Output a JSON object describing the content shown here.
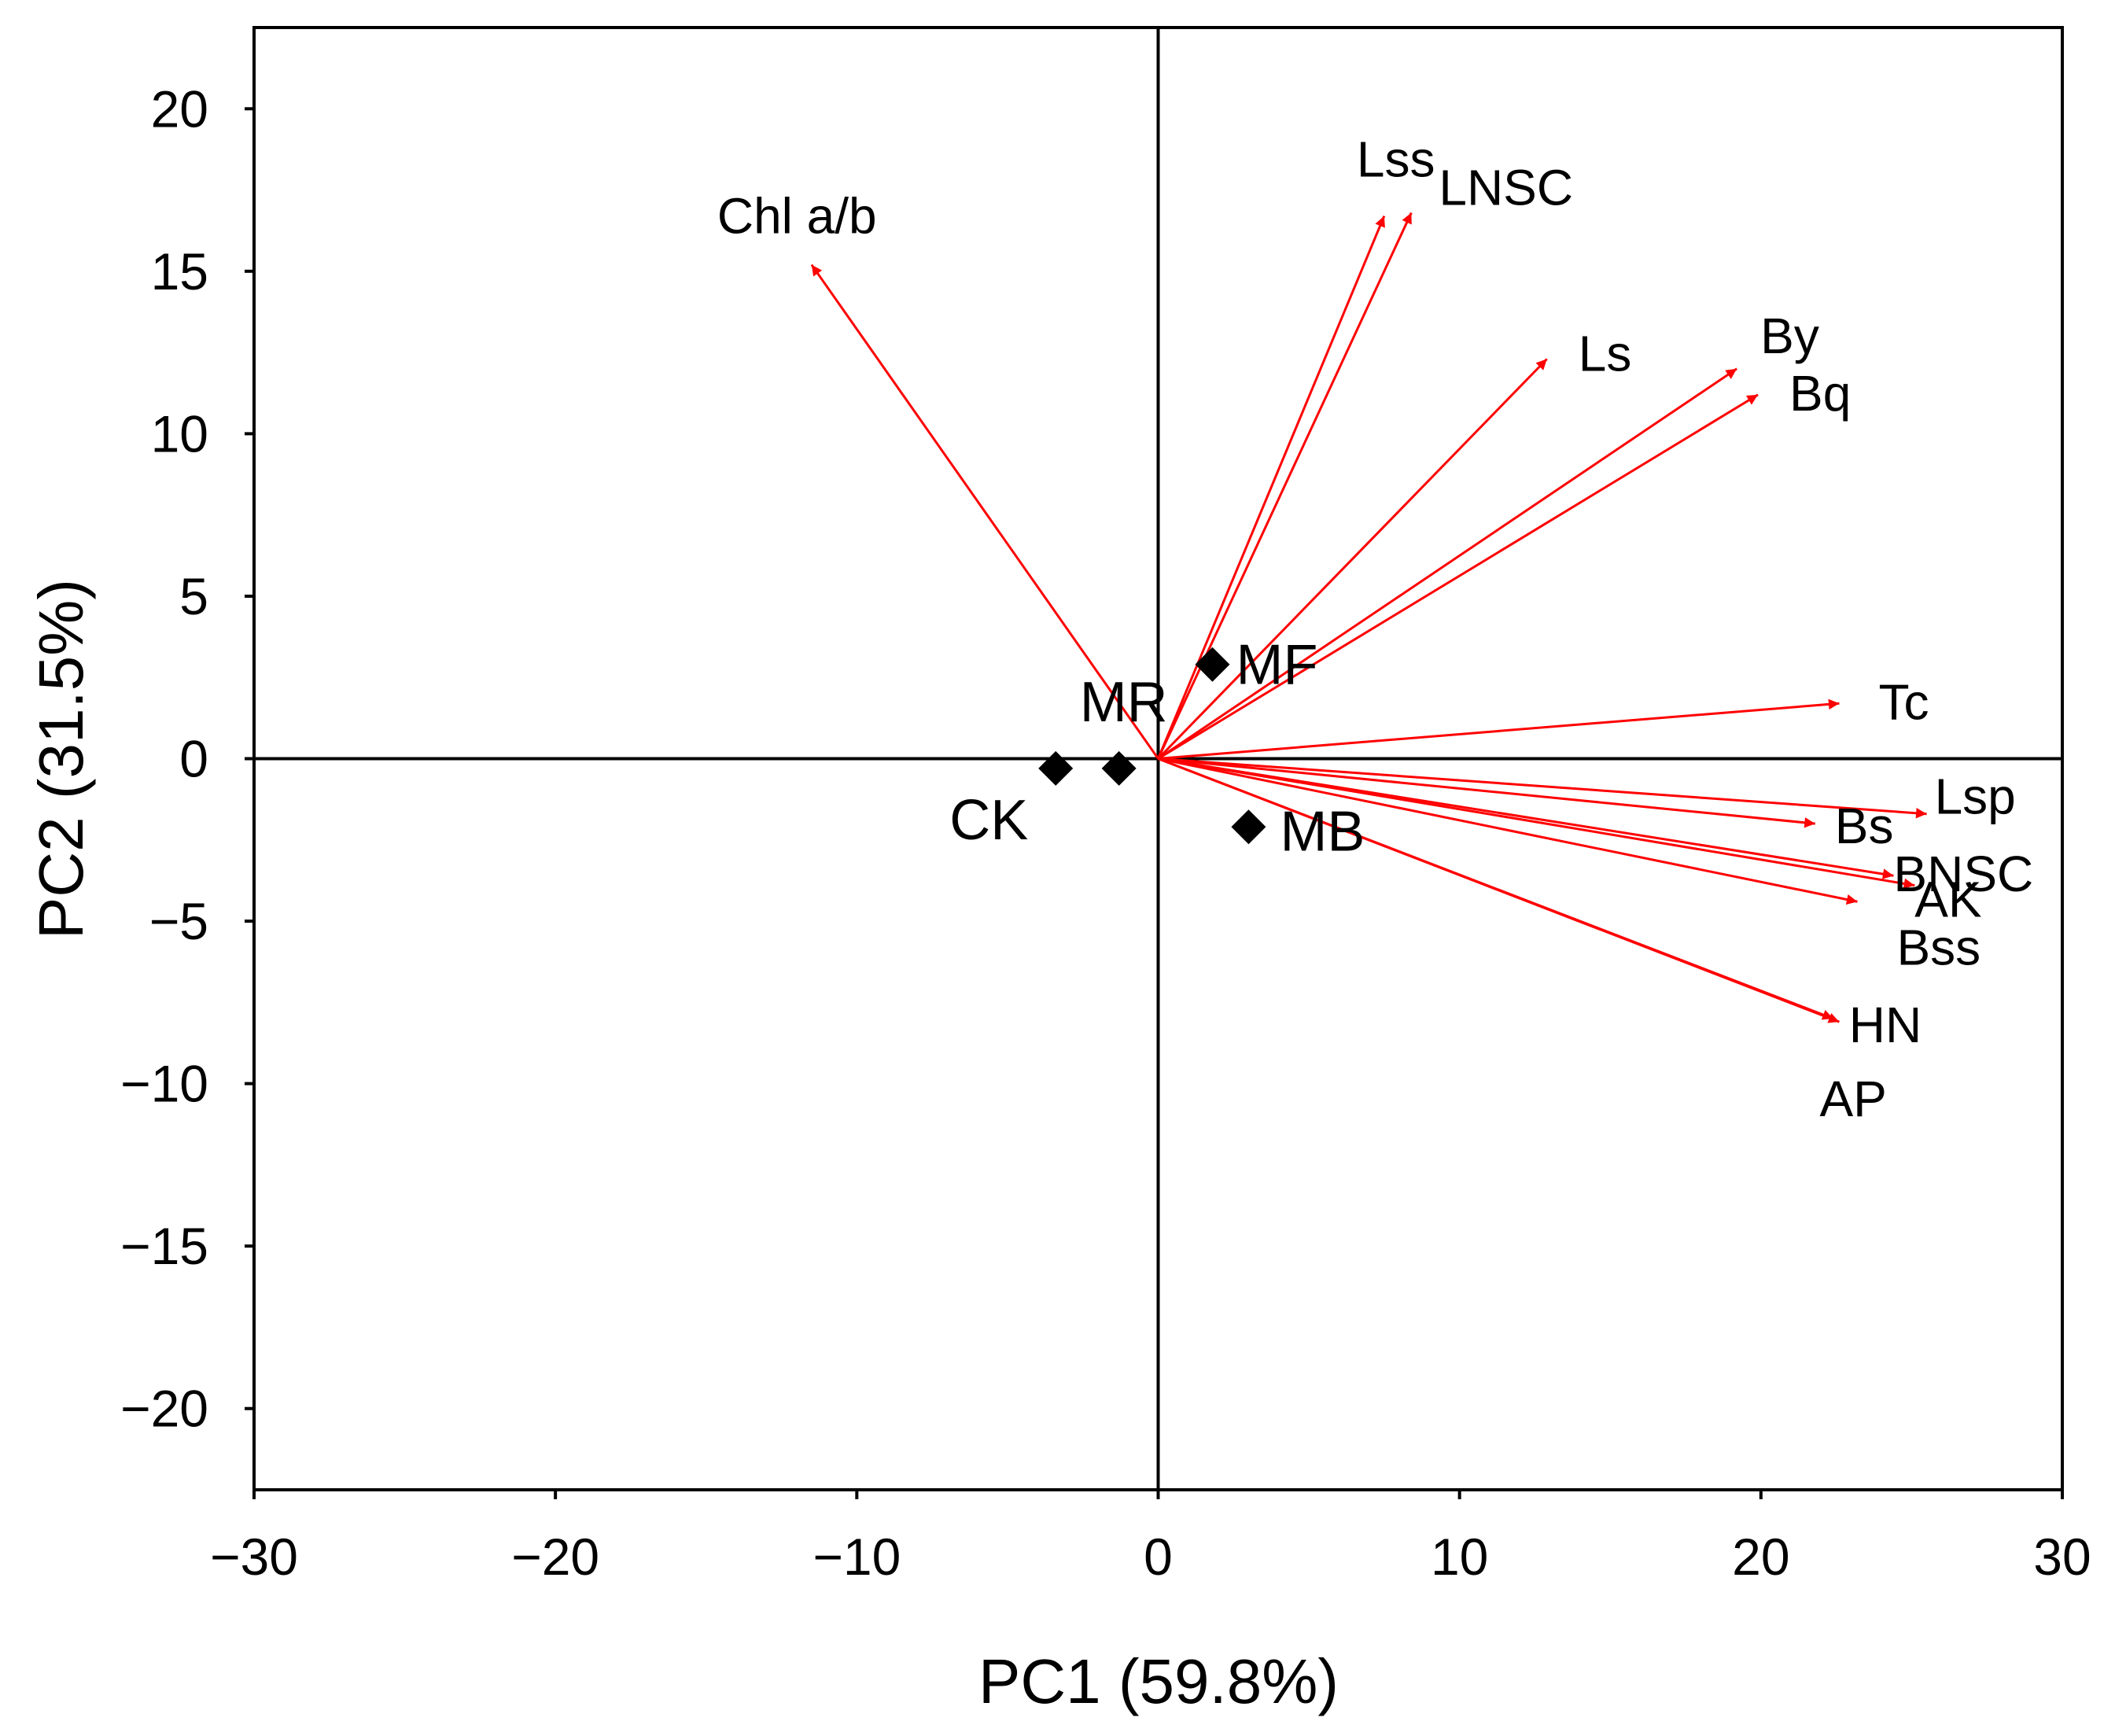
{
  "colors": {
    "vector": "#ff0000",
    "axis": "#000000",
    "marker": "#000000",
    "background": "#ffffff"
  },
  "chart_data": {
    "type": "scatter",
    "subtype": "pca-biplot",
    "xlabel": "PC1 (59.8%)",
    "ylabel": "PC2 (31.5%)",
    "xlim": [
      -30,
      30
    ],
    "ylim": [
      -22.5,
      22.5
    ],
    "x_ticks": [
      -30,
      -20,
      -10,
      0,
      10,
      20,
      30
    ],
    "x_tick_labels": [
      "−30",
      "−20",
      "−10",
      "0",
      "10",
      "20",
      "30"
    ],
    "y_ticks": [
      20,
      15,
      10,
      5,
      0,
      -5,
      -10,
      -15,
      -20
    ],
    "y_tick_labels": [
      "20",
      "15",
      "10",
      "5",
      "0",
      "−5",
      "−10",
      "−15",
      "−20"
    ],
    "grid": false,
    "zero_lines": true,
    "vectors": [
      {
        "name": "Chl a/b",
        "x": -11.5,
        "y": 15.2
      },
      {
        "name": "Lss",
        "x": 7.5,
        "y": 16.7
      },
      {
        "name": "LNSC",
        "x": 8.4,
        "y": 16.8
      },
      {
        "name": "Ls",
        "x": 12.9,
        "y": 12.3
      },
      {
        "name": "By",
        "x": 19.2,
        "y": 12.0
      },
      {
        "name": "Bq",
        "x": 19.9,
        "y": 11.2
      },
      {
        "name": "Tc",
        "x": 22.6,
        "y": 1.7
      },
      {
        "name": "Lsp",
        "x": 25.5,
        "y": -1.7
      },
      {
        "name": "Bs",
        "x": 21.8,
        "y": -2.0
      },
      {
        "name": "BNSC",
        "x": 24.4,
        "y": -3.6
      },
      {
        "name": "AK",
        "x": 25.1,
        "y": -3.9
      },
      {
        "name": "Bss",
        "x": 23.2,
        "y": -4.4
      },
      {
        "name": "HN",
        "x": 22.4,
        "y": -8.0
      },
      {
        "name": "AP",
        "x": 22.6,
        "y": -8.1
      }
    ],
    "points": [
      {
        "name": "MF",
        "x": 1.8,
        "y": 2.9
      },
      {
        "name": "MR",
        "x": -1.3,
        "y": -0.3
      },
      {
        "name": "CK",
        "x": -3.4,
        "y": -0.3
      },
      {
        "name": "MB",
        "x": 3.0,
        "y": -2.1
      }
    ]
  }
}
